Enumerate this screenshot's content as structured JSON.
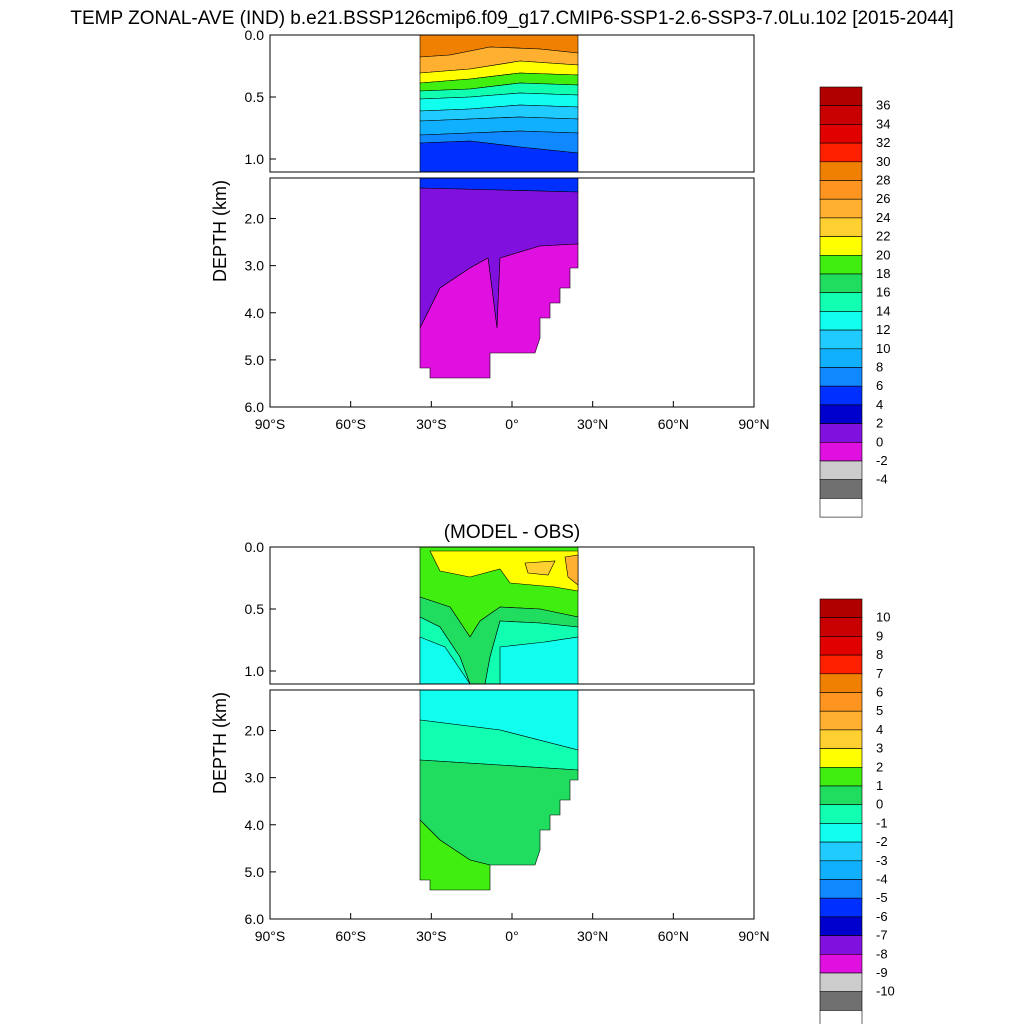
{
  "figure": {
    "title": "TEMP ZONAL-AVE (IND) b.e21.BSSP126cmip6.f09_g17.CMIP6-SSP1-2.6-SSP3-7.0Lu.102 [2015-2044]"
  },
  "chart_data": [
    {
      "type": "heatmap",
      "title": "",
      "xlabel": "",
      "ylabel": "DEPTH (km)",
      "xlim": [
        -90,
        90
      ],
      "ylim_depth_km": [
        0,
        6
      ],
      "x_ticks": [
        {
          "value": -90,
          "label": "90°S"
        },
        {
          "value": -60,
          "label": "60°S"
        },
        {
          "value": -30,
          "label": "30°S"
        },
        {
          "value": 0,
          "label": "0°"
        },
        {
          "value": 30,
          "label": "30°N"
        },
        {
          "value": 60,
          "label": "60°N"
        },
        {
          "value": 90,
          "label": "90°N"
        }
      ],
      "upper_y_ticks": [
        "0.0",
        "0.5",
        "1.0"
      ],
      "lower_y_ticks": [
        "2.0",
        "3.0",
        "4.0",
        "5.0",
        "6.0"
      ],
      "colorbar": {
        "labels": [
          "36",
          "34",
          "32",
          "30",
          "28",
          "26",
          "24",
          "22",
          "20",
          "18",
          "16",
          "14",
          "12",
          "10",
          "8",
          "6",
          "4",
          "2",
          "0",
          "-2",
          "-4"
        ],
        "colors": [
          "#b00000",
          "#c80000",
          "#e00000",
          "#ff2000",
          "#f08000",
          "#ff9520",
          "#ffb030",
          "#ffd030",
          "#ffff00",
          "#40ee10",
          "#20dd60",
          "#10ffb0",
          "#10ffee",
          "#20ccff",
          "#10b0ff",
          "#1088ff",
          "#0030ff",
          "#0000cc",
          "#8010dd",
          "#e010e0",
          "#cccccc",
          "#707070",
          "#ffffff"
        ]
      },
      "bands": [
        {
          "level": "<0.5",
          "color": "#e010e0"
        },
        {
          "level": "0.5-4",
          "color": "#8010dd"
        },
        {
          "level": "4-6",
          "color": "#0000cc"
        },
        {
          "level": "6-8",
          "color": "#0030ff"
        },
        {
          "level": "8-10",
          "color": "#1088ff"
        },
        {
          "level": "10-12",
          "color": "#10b0ff"
        },
        {
          "level": "12-14",
          "color": "#20ccff"
        },
        {
          "level": "14-16",
          "color": "#10ffee"
        },
        {
          "level": "16-18",
          "color": "#10ffb0"
        },
        {
          "level": "18-20",
          "color": "#40ee10"
        },
        {
          "level": "20-22",
          "color": "#ffff00"
        },
        {
          "level": "22-24",
          "color": "#ffd030"
        },
        {
          "level": "24-26",
          "color": "#ffb030"
        },
        {
          "level": "26-28",
          "color": "#ff9520"
        },
        {
          "level": "28-30",
          "color": "#f08000"
        },
        {
          "level": ">30",
          "color": "#e00000"
        }
      ]
    },
    {
      "type": "heatmap",
      "title": "(MODEL - OBS)",
      "xlabel": "",
      "ylabel": "DEPTH (km)",
      "xlim": [
        -90,
        90
      ],
      "ylim_depth_km": [
        0,
        6
      ],
      "x_ticks": [
        {
          "value": -90,
          "label": "90°S"
        },
        {
          "value": -60,
          "label": "60°S"
        },
        {
          "value": -30,
          "label": "30°S"
        },
        {
          "value": 0,
          "label": "0°"
        },
        {
          "value": 30,
          "label": "30°N"
        },
        {
          "value": 60,
          "label": "60°N"
        },
        {
          "value": 90,
          "label": "90°N"
        }
      ],
      "upper_y_ticks": [
        "0.0",
        "0.5",
        "1.0"
      ],
      "lower_y_ticks": [
        "2.0",
        "3.0",
        "4.0",
        "5.0",
        "6.0"
      ],
      "colorbar": {
        "labels": [
          "10",
          "9",
          "8",
          "7",
          "6",
          "5",
          "4",
          "3",
          "2",
          "1",
          "0",
          "-1",
          "-2",
          "-3",
          "-4",
          "-5",
          "-6",
          "-7",
          "-8",
          "-9",
          "-10"
        ],
        "colors": [
          "#b00000",
          "#c80000",
          "#e00000",
          "#ff2000",
          "#f08000",
          "#ff9520",
          "#ffb030",
          "#ffd030",
          "#ffff00",
          "#40ee10",
          "#20dd60",
          "#10ffb0",
          "#10ffee",
          "#20ccff",
          "#10b0ff",
          "#1088ff",
          "#0030ff",
          "#0000cc",
          "#8010dd",
          "#e010e0",
          "#cccccc",
          "#707070",
          "#ffffff"
        ]
      },
      "bands": [
        {
          "level": "1-2",
          "color": "#40ee10"
        },
        {
          "level": "0-1",
          "color": "#20dd60"
        },
        {
          "level": "-1-0",
          "color": "#10ffb0"
        },
        {
          "level": "-2--1",
          "color": "#10ffee"
        },
        {
          "level": "2-3",
          "color": "#ffff00"
        },
        {
          "level": "3-4",
          "color": "#ffd030"
        }
      ]
    }
  ]
}
